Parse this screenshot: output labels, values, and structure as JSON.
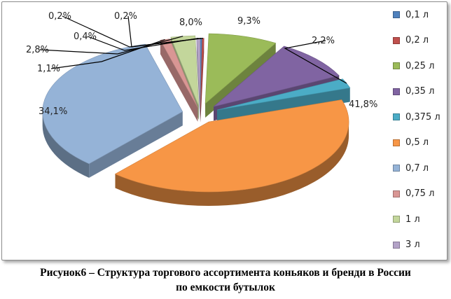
{
  "chart_data": {
    "type": "pie",
    "style": "3d-exploded",
    "title": "",
    "categories": [
      "0,1 л",
      "0,2 л",
      "0,25 л",
      "0,35 л",
      "0,375 л",
      "0,5 л",
      "0,7 л",
      "0,75 л",
      "1 л",
      "3 л"
    ],
    "values": [
      0.2,
      0.2,
      8.0,
      9.3,
      2.2,
      41.8,
      34.1,
      1.1,
      2.8,
      0.4
    ],
    "data_labels": [
      "0,2%",
      "0,2%",
      "8,0%",
      "9,3%",
      "2,2%",
      "41,8%",
      "34,1%",
      "1,1%",
      "2,8%",
      "0,4%"
    ],
    "colors": [
      "#4f81bd",
      "#c0504d",
      "#9bbb59",
      "#8064a2",
      "#4bacc6",
      "#f79646",
      "#95b3d7",
      "#d99694",
      "#c3d69b",
      "#b3a2c7"
    ],
    "legend_position": "right"
  },
  "caption": {
    "line1": "Рисунок6 – Структура торгового ассортимента коньяков и бренди в России",
    "line2": "по емкости бутылок"
  }
}
